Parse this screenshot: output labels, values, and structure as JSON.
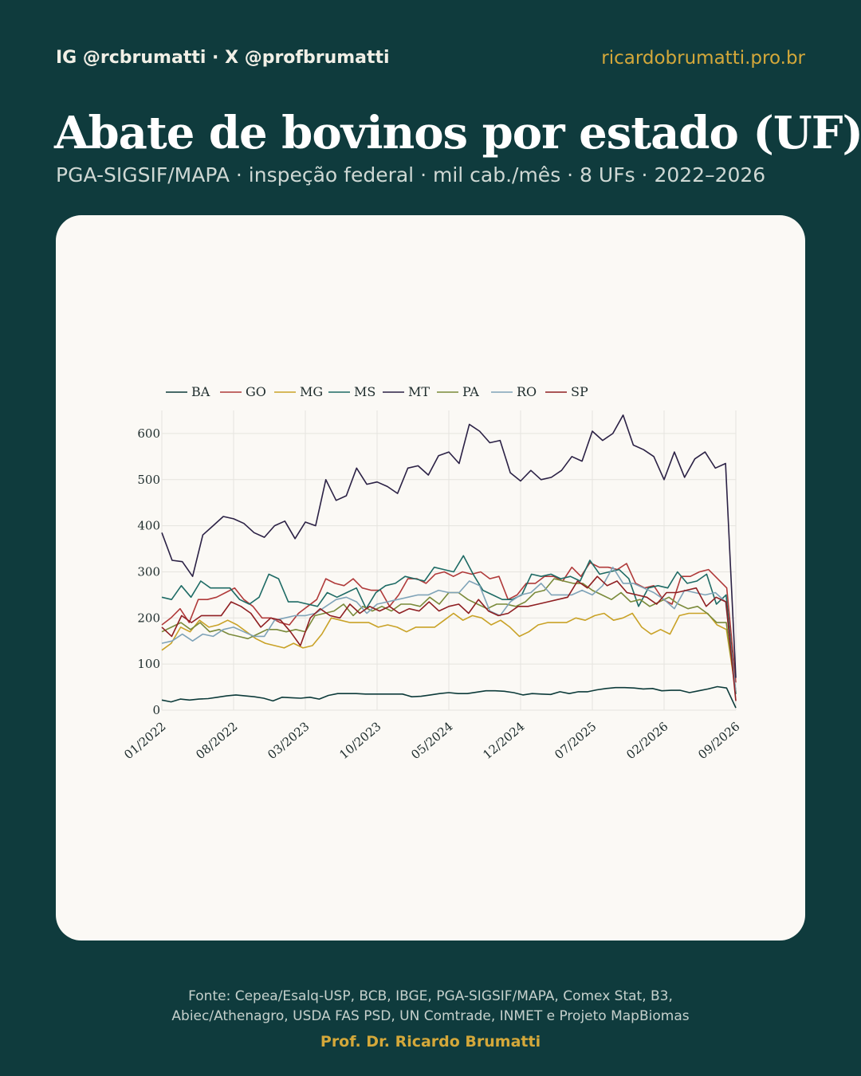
{
  "header": {
    "handle": "IG @rcbrumatti · X @profbrumatti",
    "site": "ricardobrumatti.pro.br",
    "title": "Abate de bovinos por estado (UF)",
    "subtitle": "PGA-SIGSIF/MAPA · inspeção federal · mil cab./mês · 8 UFs · 2022–2026"
  },
  "footer": {
    "source_line1": "Fonte: Cepea/Esalq-USP, BCB, IBGE, PGA-SIGSIF/MAPA, Comex Stat, B3,",
    "source_line2": "Abiec/Athenagro, USDA FAS PSD, UN Comtrade, INMET e Projeto MapBiomas",
    "author": "Prof. Dr. Ricardo Brumatti"
  },
  "chart_data": {
    "type": "line",
    "title": "",
    "xlabel": "",
    "ylabel": "",
    "start": "2022-01",
    "x_ticks": [
      "01/2022",
      "08/2022",
      "03/2023",
      "10/2023",
      "05/2024",
      "12/2024",
      "07/2025",
      "02/2026",
      "09/2026"
    ],
    "y_ticks": [
      0,
      100,
      200,
      300,
      400,
      500,
      600
    ],
    "ylim": [
      0,
      650
    ],
    "grid": true,
    "legend_position": "top-left",
    "series": [
      {
        "name": "BA",
        "color": "#0d3b3a",
        "values": [
          22,
          18,
          24,
          22,
          24,
          25,
          28,
          31,
          33,
          31,
          29,
          26,
          20,
          28,
          27,
          26,
          28,
          24,
          32,
          36,
          36,
          36,
          35,
          35,
          35,
          35,
          35,
          29,
          30,
          33,
          36,
          38,
          36,
          36,
          39,
          42,
          42,
          41,
          38,
          33,
          36,
          35,
          34,
          40,
          36,
          40,
          40,
          44,
          47,
          49,
          49,
          48,
          46,
          47,
          42,
          43,
          43,
          38,
          42,
          46,
          51,
          48,
          5
        ]
      },
      {
        "name": "GO",
        "color": "#b03a3a",
        "values": [
          185,
          200,
          220,
          190,
          240,
          240,
          245,
          255,
          265,
          240,
          225,
          200,
          200,
          190,
          185,
          210,
          225,
          240,
          285,
          275,
          270,
          285,
          265,
          260,
          260,
          225,
          250,
          285,
          285,
          275,
          295,
          300,
          290,
          300,
          295,
          300,
          285,
          290,
          240,
          250,
          275,
          275,
          290,
          290,
          280,
          310,
          290,
          320,
          310,
          310,
          305,
          318,
          275,
          265,
          270,
          240,
          230,
          290,
          290,
          300,
          305,
          285,
          265,
          60
        ]
      },
      {
        "name": "MG",
        "color": "#c9a227",
        "values": [
          130,
          145,
          180,
          170,
          195,
          180,
          185,
          195,
          185,
          170,
          155,
          145,
          140,
          135,
          145,
          135,
          140,
          165,
          200,
          195,
          190,
          190,
          190,
          180,
          185,
          180,
          170,
          180,
          180,
          180,
          195,
          210,
          195,
          205,
          200,
          185,
          195,
          180,
          160,
          170,
          185,
          190,
          190,
          190,
          200,
          195,
          205,
          210,
          195,
          200,
          210,
          180,
          165,
          175,
          165,
          205,
          210,
          210,
          210,
          185,
          175,
          40
        ]
      },
      {
        "name": "MS",
        "color": "#1e6b65",
        "values": [
          245,
          240,
          270,
          245,
          280,
          265,
          265,
          265,
          240,
          230,
          245,
          295,
          285,
          235,
          235,
          230,
          225,
          255,
          245,
          255,
          265,
          220,
          255,
          270,
          275,
          290,
          285,
          280,
          310,
          305,
          300,
          335,
          295,
          260,
          250,
          240,
          240,
          250,
          295,
          290,
          295,
          285,
          290,
          280,
          325,
          295,
          300,
          305,
          285,
          225,
          265,
          270,
          265,
          300,
          275,
          280,
          295,
          230,
          250,
          35
        ]
      },
      {
        "name": "MT",
        "color": "#2b2145",
        "values": [
          385,
          325,
          322,
          290,
          380,
          400,
          420,
          415,
          405,
          385,
          375,
          400,
          410,
          372,
          408,
          400,
          500,
          455,
          465,
          525,
          490,
          495,
          485,
          470,
          525,
          530,
          510,
          552,
          560,
          535,
          620,
          605,
          580,
          585,
          515,
          497,
          520,
          500,
          505,
          520,
          550,
          540,
          605,
          585,
          600,
          640,
          575,
          565,
          550,
          500,
          560,
          505,
          545,
          560,
          525,
          535,
          70
        ]
      },
      {
        "name": "PA",
        "color": "#7a8a3a",
        "values": [
          170,
          180,
          190,
          175,
          190,
          170,
          175,
          165,
          160,
          155,
          165,
          175,
          175,
          170,
          175,
          170,
          205,
          210,
          215,
          230,
          205,
          225,
          215,
          225,
          215,
          230,
          230,
          225,
          245,
          230,
          255,
          255,
          240,
          230,
          220,
          230,
          230,
          225,
          235,
          255,
          260,
          285,
          280,
          275,
          275,
          260,
          250,
          240,
          255,
          235,
          240,
          225,
          235,
          245,
          230,
          220,
          225,
          210,
          190,
          190,
          40
        ]
      },
      {
        "name": "RO",
        "color": "#7fa3b8",
        "values": [
          145,
          150,
          165,
          150,
          165,
          160,
          175,
          180,
          170,
          160,
          160,
          195,
          200,
          205,
          205,
          210,
          225,
          240,
          245,
          235,
          210,
          230,
          235,
          240,
          245,
          250,
          250,
          260,
          255,
          255,
          280,
          270,
          215,
          205,
          235,
          250,
          255,
          275,
          250,
          250,
          250,
          260,
          250,
          270,
          310,
          275,
          275,
          265,
          255,
          240,
          220,
          260,
          255,
          250,
          255,
          235,
          40
        ]
      },
      {
        "name": "SP",
        "color": "#8f1f22",
        "values": [
          180,
          160,
          205,
          190,
          205,
          205,
          205,
          235,
          225,
          210,
          180,
          200,
          195,
          170,
          140,
          200,
          220,
          205,
          200,
          230,
          210,
          225,
          215,
          225,
          210,
          220,
          215,
          235,
          215,
          225,
          230,
          210,
          240,
          215,
          205,
          210,
          225,
          225,
          230,
          235,
          240,
          245,
          280,
          265,
          290,
          270,
          280,
          255,
          250,
          245,
          230,
          255,
          255,
          260,
          265,
          225,
          245,
          235,
          20
        ]
      }
    ]
  }
}
